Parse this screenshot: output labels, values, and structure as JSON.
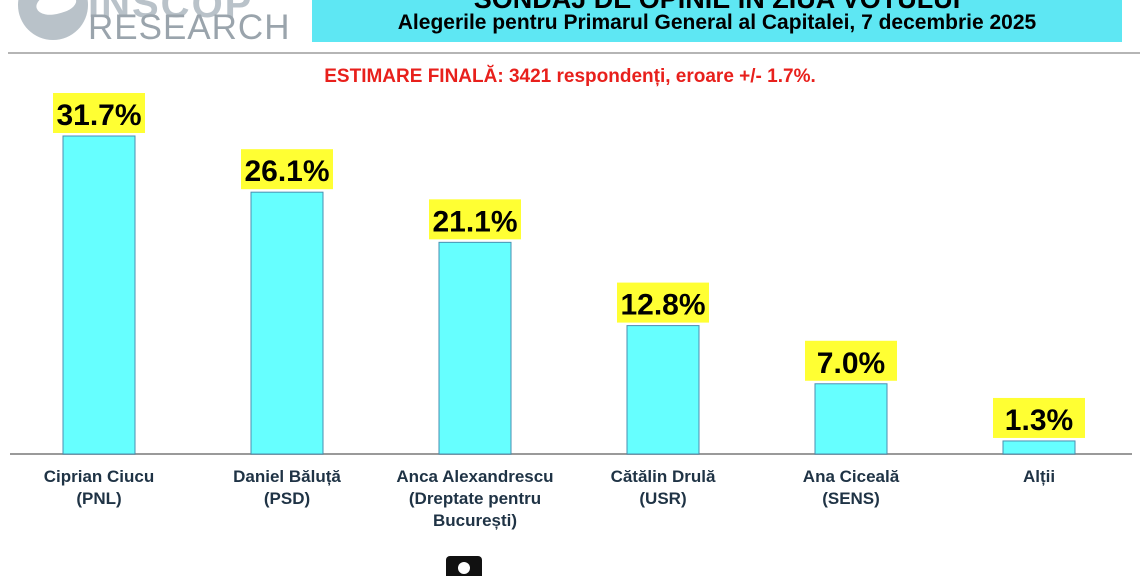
{
  "header": {
    "logo_top": "INSCOP",
    "logo_bottom": "RESEARCH",
    "title": "SONDAJ DE OPINIE ÎN ZIUA VOTULUI",
    "subtitle": "Alegerile pentru Primarul General al Capitalei, 7 decembrie 2025"
  },
  "note": "ESTIMARE FINALĂ: 3421 respondenți, eroare +/- 1.7%.",
  "colors": {
    "bar_fill": "#66ffff",
    "bar_stroke": "#4a8fb0",
    "label_bg": "#ffff33",
    "note_text": "#e8201c",
    "title_band": "#5ee7f3"
  },
  "chart_data": {
    "type": "bar",
    "categories": [
      "Ciprian Ciucu\n(PNL)",
      "Daniel Băluță\n(PSD)",
      "Anca Alexandrescu\n(Dreptate pentru\nBucurești)",
      "Cătălin Drulă\n(USR)",
      "Ana Ciceală\n(SENS)",
      "Alții"
    ],
    "values": [
      31.7,
      26.1,
      21.1,
      12.8,
      7.0,
      1.3
    ],
    "value_labels": [
      "31.7%",
      "26.1%",
      "21.1%",
      "12.8%",
      "7.0%",
      "1.3%"
    ],
    "ylim": [
      0,
      31.7
    ],
    "grid": false,
    "legend": "none"
  }
}
